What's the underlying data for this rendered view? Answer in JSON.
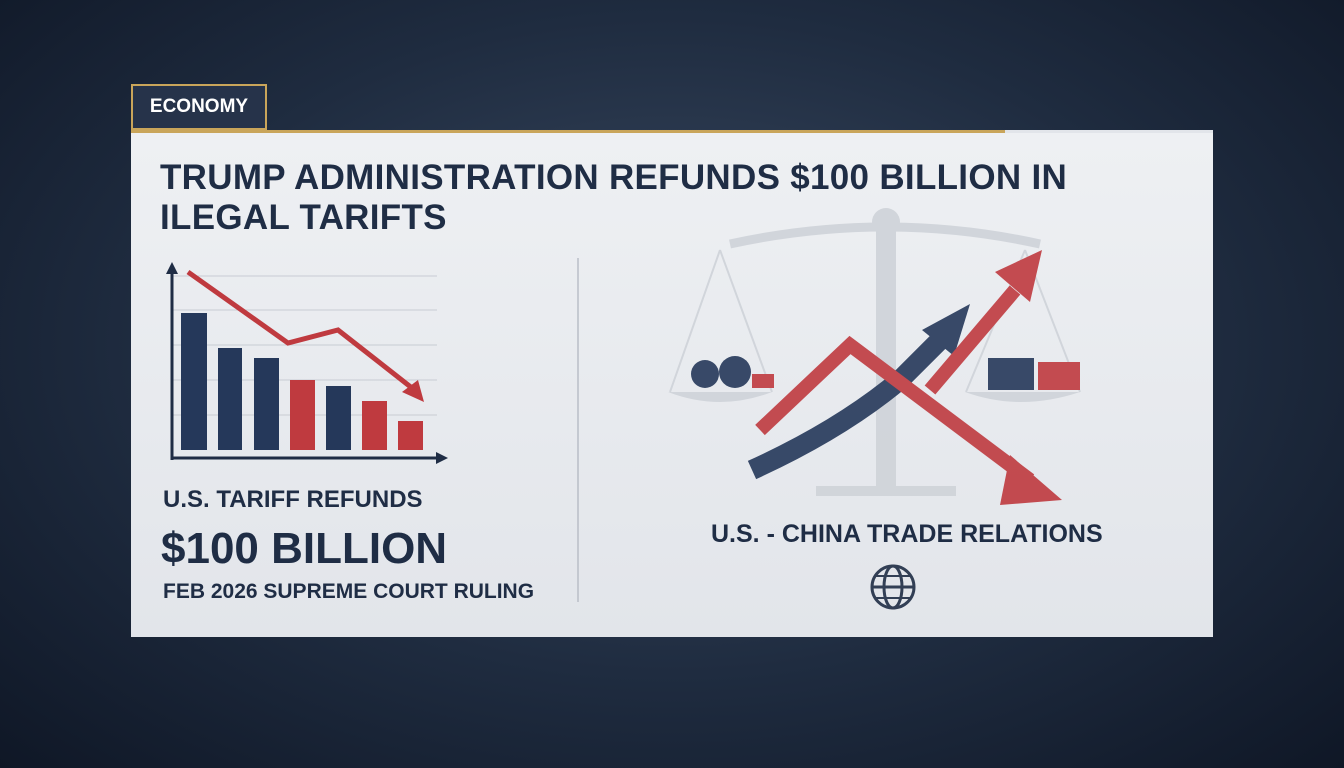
{
  "tag": "ECONOMY",
  "headline": {
    "lines": [
      "TRUMP ADMINISTRATION REFUNDS $100 BILLION IN",
      "ILEGAL TARIFTS"
    ]
  },
  "left_panel": {
    "label": "U.S. TARIFF REFUNDS",
    "amount": "$100 BILLION",
    "note": "FEB 2026 SUPREME COURT RULING"
  },
  "right_panel": {
    "label": "U.S. - CHINA TRADE RELATIONS"
  }
}
